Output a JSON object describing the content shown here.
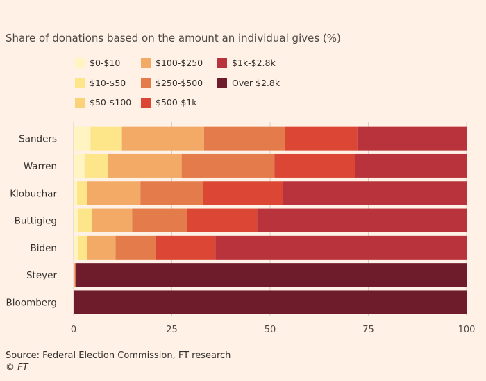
{
  "chart_data": {
    "type": "bar",
    "orientation": "horizontal",
    "stacked": true,
    "title": "Share of donations based on the amount an individual gives (%)",
    "categories": [
      "Sanders",
      "Warren",
      "Klobuchar",
      "Buttigieg",
      "Biden",
      "Steyer",
      "Bloomberg"
    ],
    "series": [
      {
        "name": "$0-$10",
        "color": "#fff4c2",
        "values": [
          4.3,
          2.8,
          0.9,
          1.2,
          1.1,
          0.1,
          0
        ]
      },
      {
        "name": "$10-$50",
        "color": "#fde68a",
        "values": [
          8.0,
          5.9,
          2.6,
          3.4,
          2.3,
          0.1,
          0
        ]
      },
      {
        "name": "$50-$100",
        "color": "#fbd279",
        "values": [
          0.0,
          0.0,
          0.0,
          0.0,
          0.0,
          0.0,
          0
        ]
      },
      {
        "name": "$100-$250",
        "color": "#f2aa66",
        "values": [
          20.9,
          18.8,
          13.5,
          10.3,
          7.3,
          0.1,
          0
        ]
      },
      {
        "name": "$250-$500",
        "color": "#e47b4b",
        "values": [
          20.5,
          23.6,
          16.0,
          14.0,
          10.2,
          0.1,
          0
        ]
      },
      {
        "name": "$500-$1k",
        "color": "#dc4635",
        "values": [
          18.5,
          20.5,
          20.3,
          17.8,
          15.2,
          0.1,
          0
        ]
      },
      {
        "name": "$1k-$2.8k",
        "color": "#b8333b",
        "values": [
          27.8,
          28.4,
          46.7,
          53.3,
          63.9,
          0.0,
          0
        ]
      },
      {
        "name": "Over $2.8k",
        "color": "#6e1b2c",
        "values": [
          0.0,
          0.0,
          0.0,
          0.0,
          0.0,
          99.5,
          100
        ]
      }
    ],
    "xlim": [
      0,
      100
    ],
    "xticks": [
      "0",
      "25",
      "50",
      "75",
      "100"
    ],
    "xtick_values": [
      0,
      25,
      50,
      75,
      100
    ],
    "xlabel": "",
    "ylabel": "",
    "legend_position": "top"
  },
  "source": "Source: Federal Election Commission, FT research",
  "copyright": "© FT"
}
